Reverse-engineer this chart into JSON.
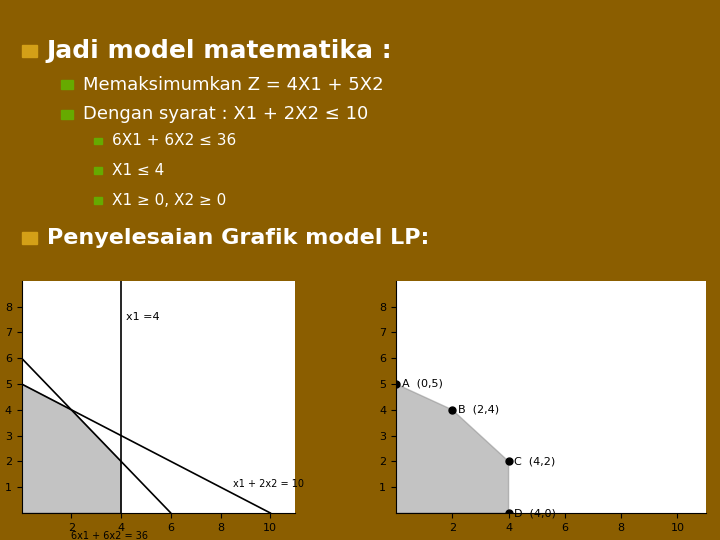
{
  "bg_color": "#8B5E00",
  "title": "Jadi model matematika :",
  "bullet1": "Memaksimumkan Z = 4X1 + 5X2",
  "bullet2": "Dengan syarat : X1 + 2X2 ≤ 10",
  "sub1": "6X1 + 6X2 ≤ 36",
  "sub2": "X1 ≤ 4",
  "sub3": "X1 ≥ 0, X2 ≥ 0",
  "bullet3": "Penyelesaian Grafik model LP:",
  "title_color": "#FFFFFF",
  "bullet_color": "#FFFFFF",
  "sub_color": "#FFFFFF",
  "bullet_square_color1": "#D4A017",
  "bullet_square_color2": "#66AA00",
  "graph_bg": "#FFFFFF",
  "shade_color": "#888888",
  "line_color": "#000000",
  "point_color": "#000000",
  "label_color": "#000000"
}
